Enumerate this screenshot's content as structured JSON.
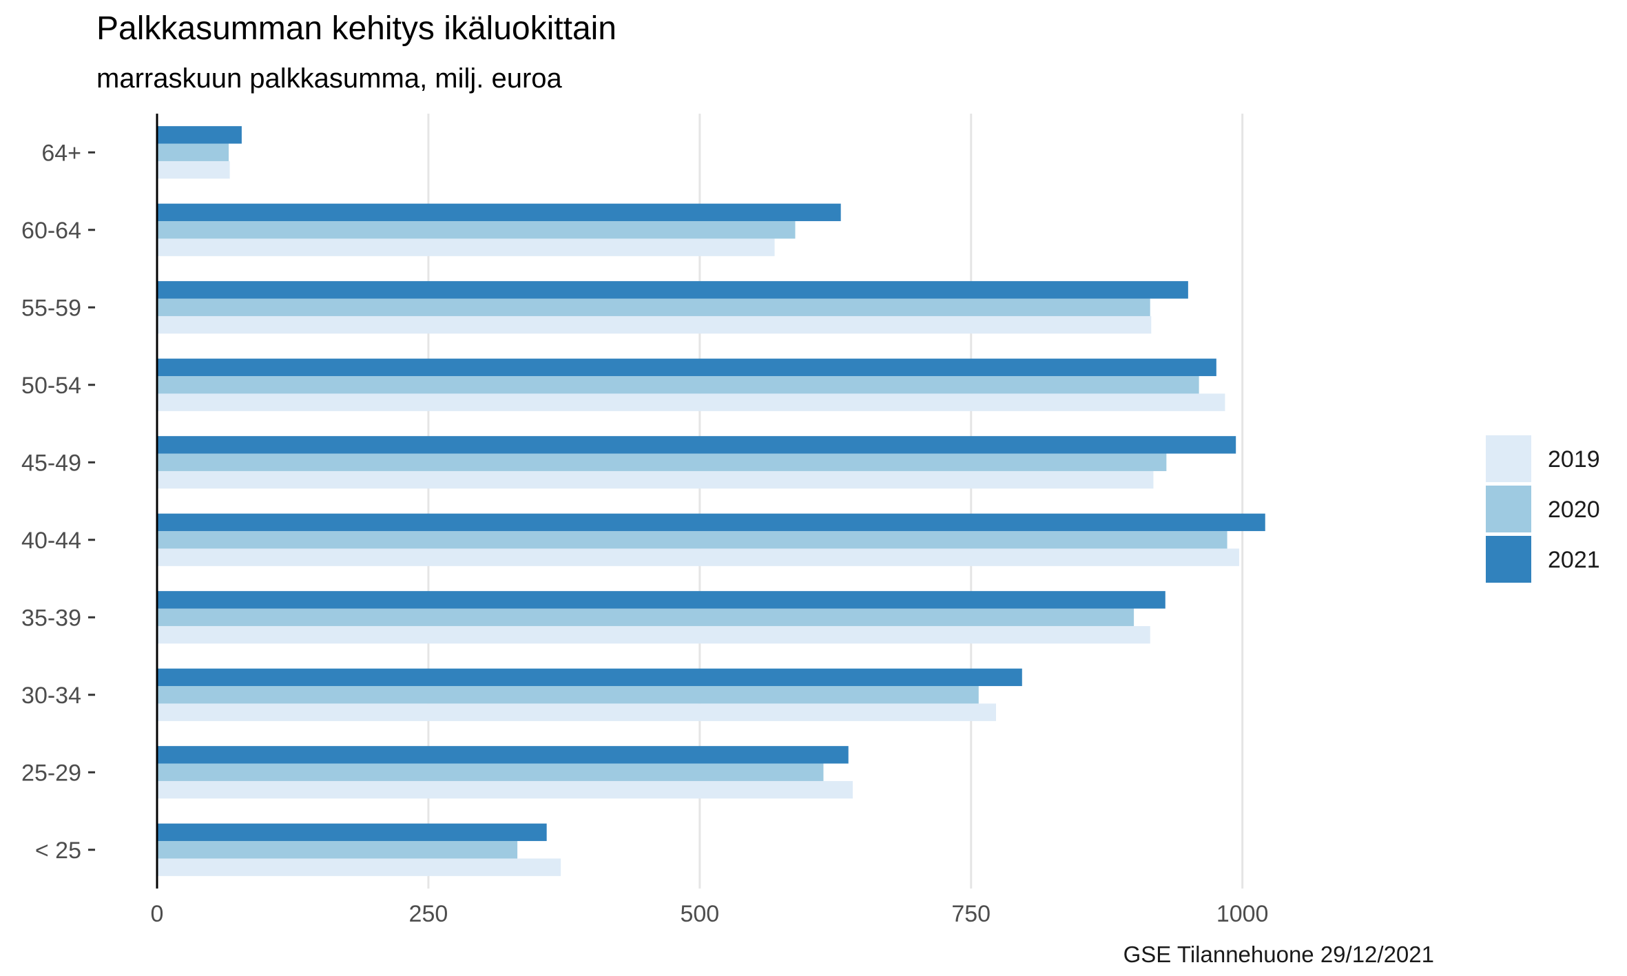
{
  "chart_data": {
    "type": "bar",
    "orientation": "horizontal",
    "title": "Palkkasumman kehitys ikäluokittain",
    "subtitle": "marraskuun palkkasumma, milj. euroa",
    "caption": "GSE Tilannehuone 29/12/2021",
    "categories": [
      "< 25",
      "25-29",
      "30-34",
      "35-39",
      "40-44",
      "45-49",
      "50-54",
      "55-59",
      "60-64",
      "64+"
    ],
    "series": [
      {
        "name": "2019",
        "color": "#deebf7",
        "values": [
          372,
          641,
          773,
          915,
          997,
          918,
          984,
          916,
          569,
          67
        ]
      },
      {
        "name": "2020",
        "color": "#9ecae1",
        "values": [
          332,
          614,
          757,
          900,
          986,
          930,
          960,
          915,
          588,
          66
        ]
      },
      {
        "name": "2021",
        "color": "#3182bd",
        "values": [
          359,
          637,
          797,
          929,
          1021,
          994,
          976,
          950,
          630,
          78
        ]
      }
    ],
    "xlim": [
      0,
      1150
    ],
    "xticks": [
      0,
      250,
      500,
      750,
      1000
    ],
    "grid": "vertical major gridlines",
    "legend_position": "right"
  }
}
